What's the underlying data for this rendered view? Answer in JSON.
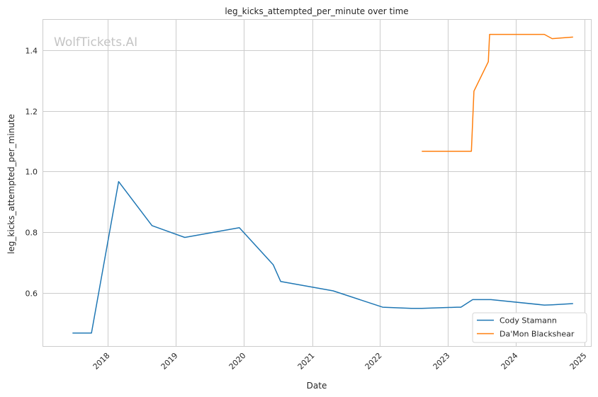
{
  "chart_data": {
    "type": "line",
    "title": "leg_kicks_attempted_per_minute over time",
    "xlabel": "Date",
    "ylabel": "leg_kicks_attempted_per_minute",
    "watermark": "WolfTickets.AI",
    "x_range": [
      "2017-01-18",
      "2025-02-06"
    ],
    "ylim": [
      0.425,
      1.5
    ],
    "x_ticks": [
      "2018",
      "2019",
      "2020",
      "2021",
      "2022",
      "2023",
      "2024",
      "2025"
    ],
    "y_ticks": [
      0.6,
      0.8,
      1.0,
      1.2,
      1.4
    ],
    "grid": true,
    "legend_position": "bottom-right",
    "series": [
      {
        "name": "Cody Stamann",
        "color": "#1f77b4",
        "points": [
          [
            "2017-06-24",
            0.468
          ],
          [
            "2017-10-04",
            0.468
          ],
          [
            "2018-02-27",
            0.967
          ],
          [
            "2018-08-25",
            0.822
          ],
          [
            "2019-02-17",
            0.783
          ],
          [
            "2019-12-07",
            0.815
          ],
          [
            "2020-06-06",
            0.693
          ],
          [
            "2020-07-16",
            0.638
          ],
          [
            "2021-04-24",
            0.607
          ],
          [
            "2022-01-15",
            0.553
          ],
          [
            "2022-06-18",
            0.549
          ],
          [
            "2022-08-13",
            0.549
          ],
          [
            "2023-02-18",
            0.553
          ],
          [
            "2023-03-11",
            0.553
          ],
          [
            "2023-05-13",
            0.578
          ],
          [
            "2023-08-19",
            0.578
          ],
          [
            "2024-06-01",
            0.56
          ],
          [
            "2024-07-13",
            0.561
          ],
          [
            "2024-11-02",
            0.565
          ]
        ]
      },
      {
        "name": "Da'Mon Blackshear",
        "color": "#ff7f0e",
        "points": [
          [
            "2022-08-13",
            1.067
          ],
          [
            "2023-05-06",
            1.067
          ],
          [
            "2023-05-20",
            1.265
          ],
          [
            "2023-08-05",
            1.362
          ],
          [
            "2023-08-12",
            1.452
          ],
          [
            "2024-06-01",
            1.452
          ],
          [
            "2024-07-13",
            1.438
          ],
          [
            "2024-11-02",
            1.443
          ]
        ]
      }
    ]
  }
}
